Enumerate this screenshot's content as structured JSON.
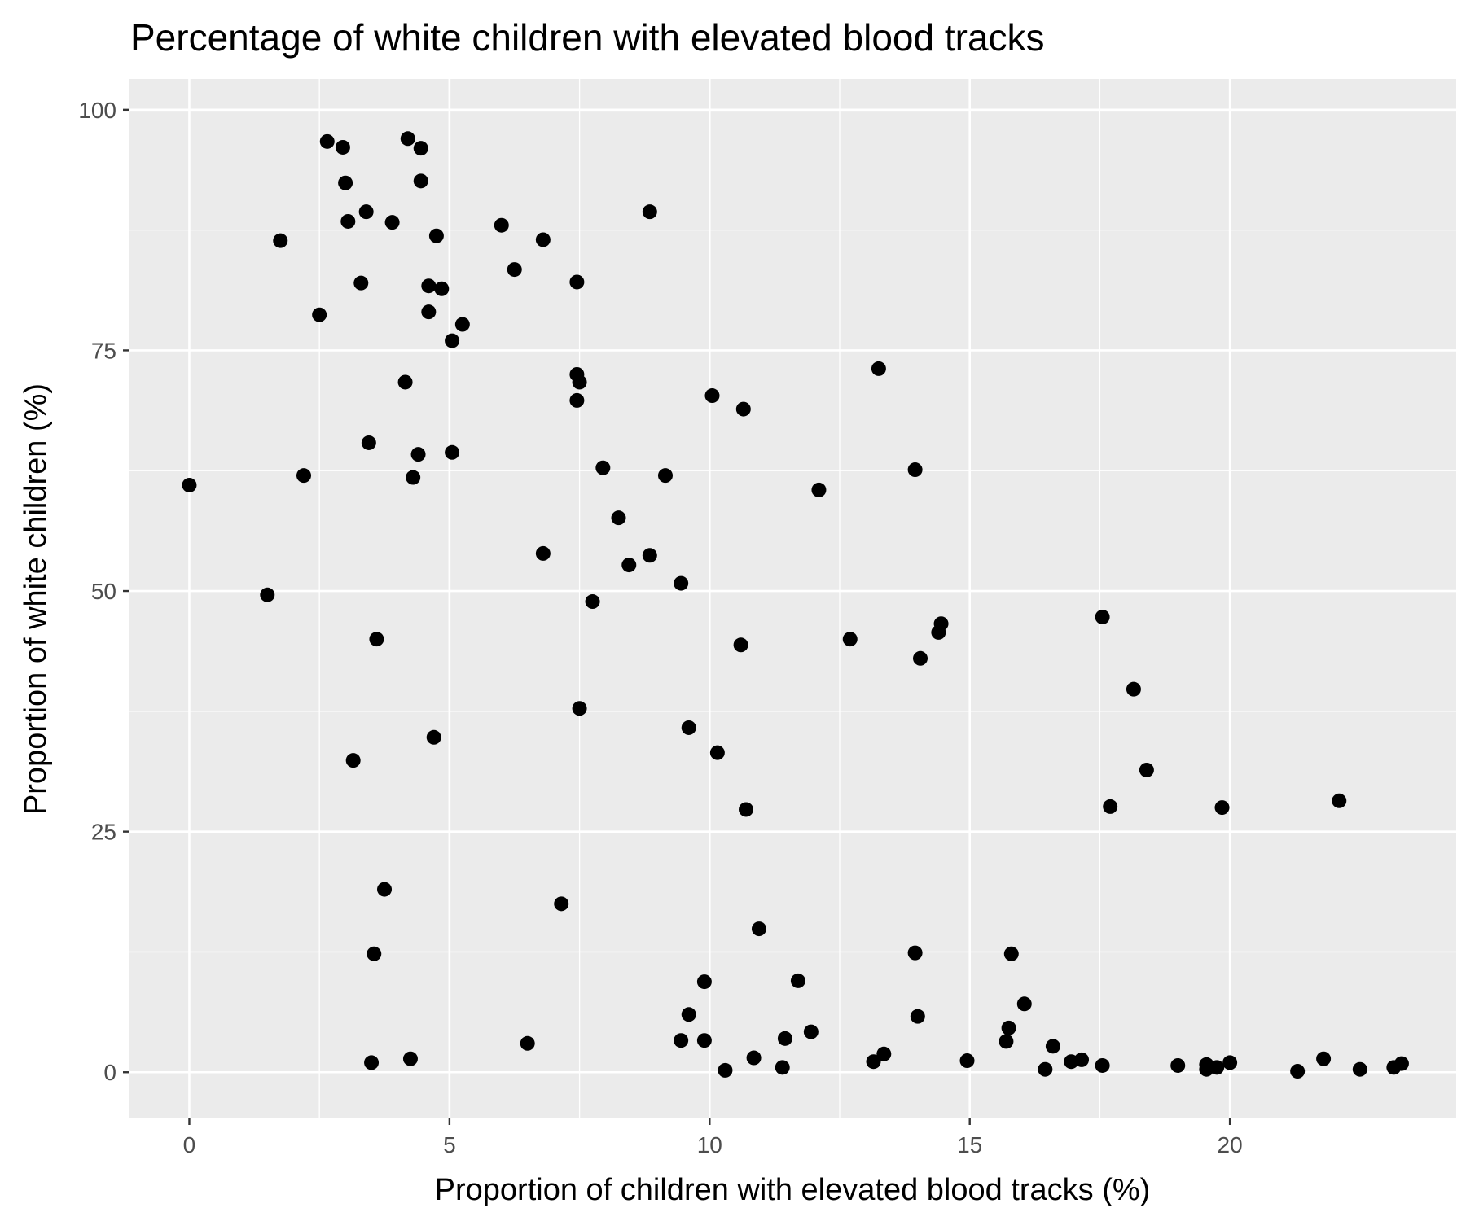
{
  "chart_data": {
    "type": "scatter",
    "title": "Percentage of white children with elevated blood tracks",
    "xlabel": "Proportion of children with elevated blood tracks (%)",
    "ylabel": "Proportion of white children (%)",
    "xlim": [
      -1.15,
      24.35
    ],
    "ylim": [
      -4.8,
      103.2
    ],
    "xticks": [
      0,
      5,
      10,
      15,
      20
    ],
    "yticks": [
      0,
      25,
      50,
      75,
      100
    ],
    "grid": true,
    "legend": "none",
    "colors": {
      "panel": "#EBEBEB",
      "grid": "#FFFFFF",
      "point": "#000000",
      "tick": "#4D4D4D"
    },
    "points": [
      [
        0.0,
        61.0
      ],
      [
        1.5,
        49.6
      ],
      [
        1.75,
        86.4
      ],
      [
        2.2,
        62.0
      ],
      [
        2.5,
        78.7
      ],
      [
        2.65,
        96.7
      ],
      [
        2.95,
        96.1
      ],
      [
        3.0,
        92.4
      ],
      [
        3.05,
        88.4
      ],
      [
        3.15,
        32.4
      ],
      [
        3.3,
        82.0
      ],
      [
        3.4,
        89.4
      ],
      [
        3.45,
        65.4
      ],
      [
        3.5,
        1.0
      ],
      [
        3.55,
        12.3
      ],
      [
        3.6,
        45.0
      ],
      [
        3.75,
        19.0
      ],
      [
        3.9,
        88.3
      ],
      [
        4.15,
        71.7
      ],
      [
        4.2,
        97.0
      ],
      [
        4.25,
        1.4
      ],
      [
        4.3,
        61.8
      ],
      [
        4.4,
        64.2
      ],
      [
        4.45,
        92.6
      ],
      [
        4.45,
        96.0
      ],
      [
        4.6,
        81.7
      ],
      [
        4.6,
        79.0
      ],
      [
        4.7,
        34.8
      ],
      [
        4.75,
        86.9
      ],
      [
        4.85,
        81.4
      ],
      [
        5.05,
        64.4
      ],
      [
        5.05,
        76.0
      ],
      [
        5.25,
        77.7
      ],
      [
        6.0,
        88.0
      ],
      [
        6.25,
        83.4
      ],
      [
        6.5,
        3.0
      ],
      [
        6.8,
        86.5
      ],
      [
        6.8,
        53.9
      ],
      [
        7.15,
        17.5
      ],
      [
        7.45,
        82.1
      ],
      [
        7.45,
        72.5
      ],
      [
        7.5,
        71.7
      ],
      [
        7.45,
        69.8
      ],
      [
        7.5,
        37.8
      ],
      [
        7.75,
        48.9
      ],
      [
        7.95,
        62.8
      ],
      [
        8.25,
        57.6
      ],
      [
        8.45,
        52.7
      ],
      [
        8.85,
        53.7
      ],
      [
        8.85,
        89.4
      ],
      [
        9.15,
        62.0
      ],
      [
        9.45,
        50.8
      ],
      [
        9.45,
        3.3
      ],
      [
        9.6,
        35.8
      ],
      [
        9.6,
        6.0
      ],
      [
        9.9,
        9.4
      ],
      [
        9.9,
        3.3
      ],
      [
        10.05,
        70.3
      ],
      [
        10.15,
        33.2
      ],
      [
        10.3,
        0.2
      ],
      [
        10.6,
        44.4
      ],
      [
        10.65,
        68.9
      ],
      [
        10.7,
        27.3
      ],
      [
        10.85,
        1.5
      ],
      [
        10.95,
        14.9
      ],
      [
        11.4,
        0.5
      ],
      [
        11.45,
        3.5
      ],
      [
        11.7,
        9.5
      ],
      [
        11.95,
        4.2
      ],
      [
        12.1,
        60.5
      ],
      [
        12.7,
        45.0
      ],
      [
        13.15,
        1.1
      ],
      [
        13.25,
        73.1
      ],
      [
        13.35,
        1.9
      ],
      [
        13.95,
        62.6
      ],
      [
        13.95,
        12.4
      ],
      [
        14.0,
        5.8
      ],
      [
        14.05,
        43.0
      ],
      [
        14.4,
        45.7
      ],
      [
        14.45,
        46.6
      ],
      [
        14.95,
        1.2
      ],
      [
        15.7,
        3.2
      ],
      [
        15.75,
        4.6
      ],
      [
        15.8,
        12.3
      ],
      [
        16.05,
        7.1
      ],
      [
        16.45,
        0.3
      ],
      [
        16.6,
        2.7
      ],
      [
        16.95,
        1.1
      ],
      [
        17.15,
        1.3
      ],
      [
        17.55,
        0.7
      ],
      [
        17.55,
        47.3
      ],
      [
        17.7,
        27.6
      ],
      [
        18.15,
        39.8
      ],
      [
        18.4,
        31.4
      ],
      [
        19.0,
        0.7
      ],
      [
        19.55,
        0.8
      ],
      [
        19.55,
        0.3
      ],
      [
        19.75,
        0.5
      ],
      [
        19.85,
        27.5
      ],
      [
        20.0,
        1.0
      ],
      [
        21.3,
        0.1
      ],
      [
        21.8,
        1.4
      ],
      [
        22.1,
        28.2
      ],
      [
        22.5,
        0.3
      ],
      [
        23.15,
        0.5
      ],
      [
        23.3,
        0.9
      ]
    ]
  }
}
